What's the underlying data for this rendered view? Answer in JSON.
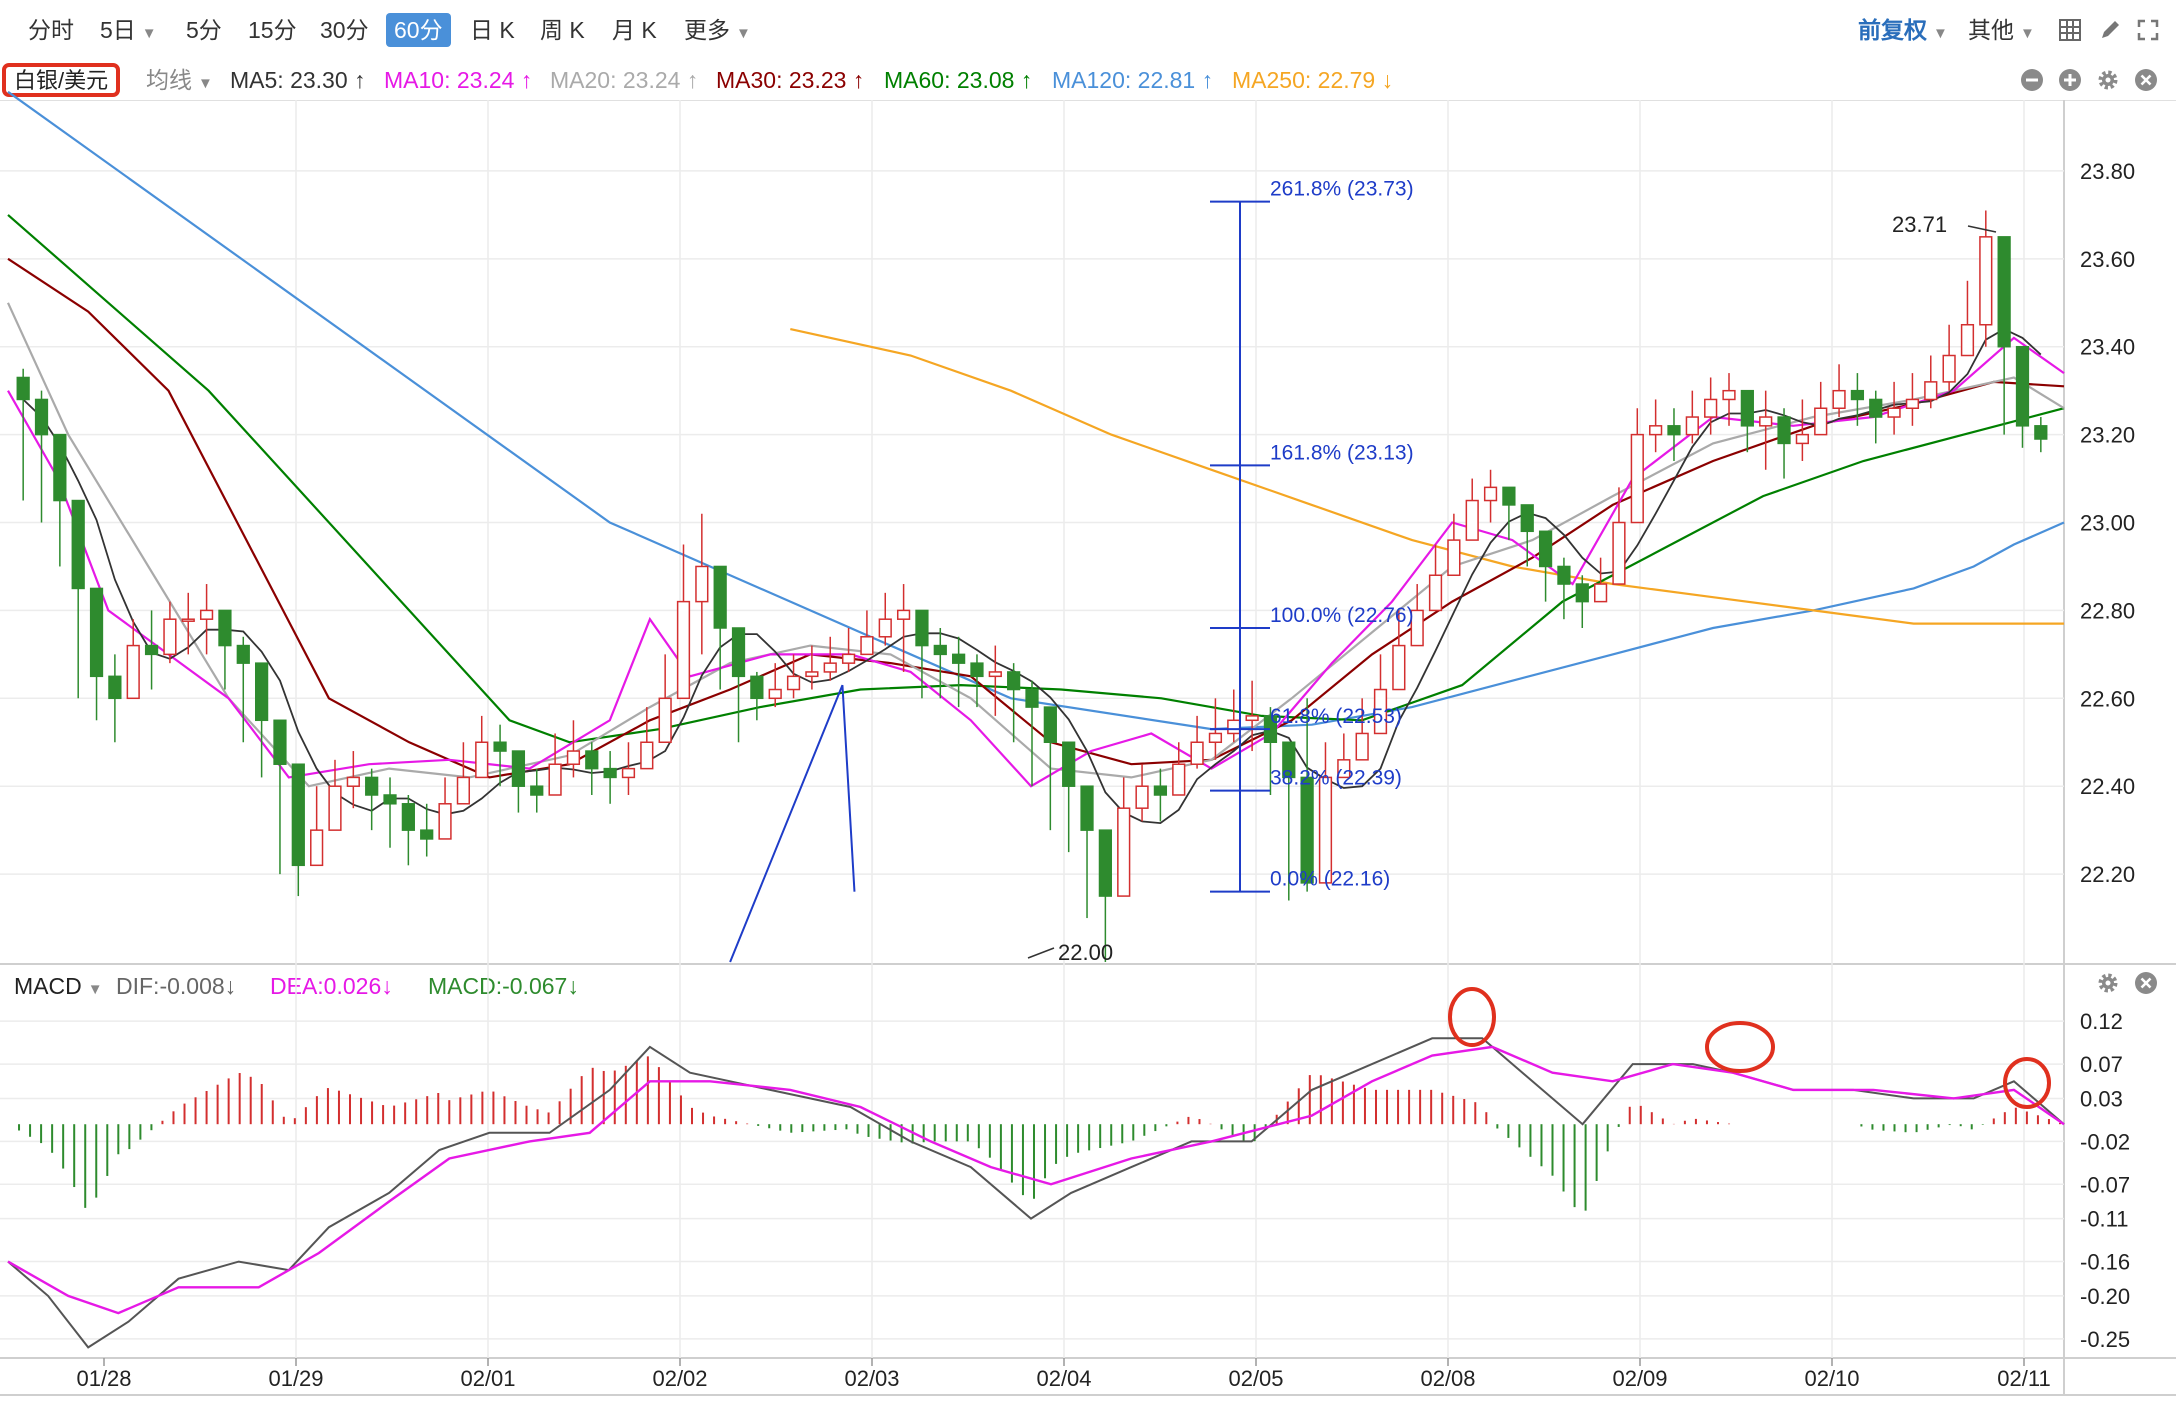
{
  "toolbar": {
    "periods": [
      "分时",
      "5日",
      "5分",
      "15分",
      "30分",
      "60分",
      "日 K",
      "周 K",
      "月 K",
      "更多"
    ],
    "active_period": "60分",
    "adjust_label": "前复权",
    "other_label": "其他"
  },
  "legend": {
    "symbol": "白银/美元",
    "avg_label": "均线",
    "ma": [
      {
        "text": "MA5: 23.30 ↑",
        "color": "#333333"
      },
      {
        "text": "MA10: 23.24 ↑",
        "color": "#e619e6"
      },
      {
        "text": "MA20: 23.24 ↑",
        "color": "#aaaaaa"
      },
      {
        "text": "MA30: 23.23 ↑",
        "color": "#8b0000"
      },
      {
        "text": "MA60: 23.08 ↑",
        "color": "#008000"
      },
      {
        "text": "MA120: 22.81 ↑",
        "color": "#4a90d9"
      },
      {
        "text": "MA250: 22.79 ↓",
        "color": "#f5a623"
      }
    ]
  },
  "macd_legend": {
    "title": "MACD",
    "dif": "DIF:-0.008↓",
    "dea": "DEA:0.026↓",
    "macd": "MACD:-0.067↓"
  },
  "colors": {
    "up": "#d32f2f",
    "down": "#2e8b2e",
    "ma5": "#333333",
    "ma10": "#e619e6",
    "ma20": "#aaaaaa",
    "ma30": "#8b0000",
    "ma60": "#008000",
    "ma120": "#4a90d9",
    "ma250": "#f5a623",
    "fib": "#1e3cc8",
    "highlight": "#e0301e"
  },
  "chart_data": {
    "type": "candlestick",
    "x_labels": [
      "01/28",
      "01/29",
      "02/01",
      "02/02",
      "02/03",
      "02/04",
      "02/05",
      "02/08",
      "02/09",
      "02/10",
      "02/11"
    ],
    "price_ticks": [
      "23.80",
      "23.60",
      "23.40",
      "23.20",
      "23.00",
      "22.80",
      "22.60",
      "22.40",
      "22.20"
    ],
    "price_range": [
      22.0,
      23.95
    ],
    "macd_ticks": [
      "0.12",
      "0.07",
      "0.03",
      "-0.02",
      "-0.07",
      "-0.11",
      "-0.16",
      "-0.20",
      "-0.25"
    ],
    "macd_range": [
      -0.27,
      0.14
    ],
    "high_annotation": "23.71",
    "low_annotation": "22.00",
    "fibonacci": [
      {
        "label": "261.8% (23.73)",
        "value": 23.73
      },
      {
        "label": "161.8% (23.13)",
        "value": 23.13
      },
      {
        "label": "100.0% (22.76)",
        "value": 22.76
      },
      {
        "label": "61.8% (22.53)",
        "value": 22.53
      },
      {
        "label": "38.2% (22.39)",
        "value": 22.39
      },
      {
        "label": "0.0% (22.16)",
        "value": 22.16
      }
    ],
    "closes": [
      23.28,
      23.2,
      23.05,
      22.85,
      22.65,
      22.6,
      22.72,
      22.7,
      22.78,
      22.78,
      22.8,
      22.72,
      22.68,
      22.55,
      22.45,
      22.22,
      22.3,
      22.4,
      22.42,
      22.38,
      22.36,
      22.3,
      22.28,
      22.36,
      22.42,
      22.5,
      22.48,
      22.4,
      22.38,
      22.45,
      22.48,
      22.44,
      22.42,
      22.44,
      22.5,
      22.6,
      22.82,
      22.9,
      22.76,
      22.65,
      22.6,
      22.62,
      22.65,
      22.66,
      22.68,
      22.7,
      22.74,
      22.78,
      22.8,
      22.72,
      22.7,
      22.68,
      22.65,
      22.66,
      22.62,
      22.58,
      22.5,
      22.4,
      22.3,
      22.15,
      22.35,
      22.4,
      22.38,
      22.45,
      22.5,
      22.52,
      22.55,
      22.56,
      22.5,
      22.42,
      22.18,
      22.42,
      22.46,
      22.52,
      22.62,
      22.72,
      22.8,
      22.88,
      22.96,
      23.05,
      23.08,
      23.04,
      22.98,
      22.9,
      22.86,
      22.82,
      22.86,
      23.0,
      23.2,
      23.22,
      23.2,
      23.24,
      23.28,
      23.3,
      23.22,
      23.24,
      23.18,
      23.2,
      23.26,
      23.3,
      23.28,
      23.24,
      23.26,
      23.28,
      23.32,
      23.38,
      23.45,
      23.65,
      23.4,
      23.22,
      23.19
    ],
    "highs": [
      23.35,
      23.3,
      23.15,
      22.95,
      22.75,
      22.7,
      22.78,
      22.8,
      22.82,
      22.84,
      22.86,
      22.8,
      22.74,
      22.62,
      22.52,
      22.3,
      22.4,
      22.46,
      22.48,
      22.44,
      22.42,
      22.38,
      22.36,
      22.42,
      22.5,
      22.56,
      22.54,
      22.46,
      22.44,
      22.52,
      22.55,
      22.5,
      22.48,
      22.5,
      22.58,
      22.7,
      22.95,
      23.02,
      22.86,
      22.72,
      22.66,
      22.68,
      22.7,
      22.72,
      22.74,
      22.76,
      22.8,
      22.84,
      22.86,
      22.8,
      22.76,
      22.74,
      22.7,
      22.72,
      22.68,
      22.64,
      22.58,
      22.48,
      22.38,
      22.26,
      22.42,
      22.45,
      22.44,
      22.5,
      22.56,
      22.6,
      22.62,
      22.64,
      22.58,
      22.5,
      22.6,
      22.5,
      22.52,
      22.6,
      22.7,
      22.8,
      22.86,
      22.95,
      23.02,
      23.1,
      23.12,
      23.08,
      23.04,
      22.96,
      22.92,
      22.88,
      22.92,
      23.08,
      23.26,
      23.28,
      23.26,
      23.3,
      23.33,
      23.34,
      23.28,
      23.3,
      23.26,
      23.28,
      23.32,
      23.36,
      23.34,
      23.3,
      23.32,
      23.34,
      23.38,
      23.45,
      23.55,
      23.71,
      23.5,
      23.3,
      23.24
    ],
    "lows": [
      23.05,
      23.0,
      22.9,
      22.6,
      22.55,
      22.5,
      22.6,
      22.62,
      22.68,
      22.7,
      22.7,
      22.62,
      22.5,
      22.42,
      22.2,
      22.15,
      22.22,
      22.32,
      22.35,
      22.3,
      22.26,
      22.22,
      22.24,
      22.3,
      22.36,
      22.44,
      22.4,
      22.34,
      22.34,
      22.4,
      22.42,
      22.38,
      22.36,
      22.38,
      22.44,
      22.55,
      22.74,
      22.7,
      22.62,
      22.5,
      22.55,
      22.58,
      22.6,
      22.62,
      22.64,
      22.66,
      22.7,
      22.72,
      22.66,
      22.6,
      22.6,
      22.58,
      22.58,
      22.56,
      22.5,
      22.4,
      22.3,
      22.25,
      22.1,
      22.0,
      22.24,
      22.32,
      22.32,
      22.4,
      22.44,
      22.46,
      22.5,
      22.48,
      22.38,
      22.14,
      22.16,
      22.38,
      22.42,
      22.48,
      22.56,
      22.66,
      22.74,
      22.8,
      22.9,
      22.98,
      23.0,
      22.96,
      22.9,
      22.82,
      22.78,
      22.76,
      22.82,
      22.96,
      23.14,
      23.16,
      23.14,
      23.18,
      23.2,
      23.22,
      23.16,
      23.12,
      23.1,
      23.14,
      23.2,
      23.24,
      23.22,
      23.18,
      23.2,
      23.22,
      23.26,
      23.3,
      23.38,
      23.4,
      23.2,
      23.17,
      23.16
    ],
    "ma": {
      "ma120": [
        [
          0,
          23.98
        ],
        [
          600,
          23.0
        ],
        [
          800,
          22.8
        ],
        [
          1000,
          22.6
        ],
        [
          1200,
          22.53
        ],
        [
          1300,
          22.54
        ],
        [
          1400,
          22.58
        ],
        [
          1500,
          22.64
        ],
        [
          1600,
          22.7
        ],
        [
          1700,
          22.76
        ],
        [
          1800,
          22.8
        ],
        [
          1900,
          22.85
        ],
        [
          1960,
          22.9
        ],
        [
          2000,
          22.95
        ],
        [
          2050,
          23.0
        ]
      ],
      "ma250": [
        [
          780,
          23.44
        ],
        [
          900,
          23.38
        ],
        [
          1000,
          23.3
        ],
        [
          1100,
          23.2
        ],
        [
          1200,
          23.12
        ],
        [
          1300,
          23.04
        ],
        [
          1400,
          22.96
        ],
        [
          1500,
          22.9
        ],
        [
          1600,
          22.86
        ],
        [
          1700,
          22.83
        ],
        [
          1800,
          22.8
        ],
        [
          1900,
          22.77
        ],
        [
          2050,
          22.77
        ]
      ],
      "ma60": [
        [
          0,
          23.7
        ],
        [
          100,
          23.5
        ],
        [
          200,
          23.3
        ],
        [
          300,
          23.05
        ],
        [
          400,
          22.8
        ],
        [
          500,
          22.55
        ],
        [
          560,
          22.5
        ],
        [
          650,
          22.53
        ],
        [
          750,
          22.58
        ],
        [
          850,
          22.62
        ],
        [
          950,
          22.63
        ],
        [
          1050,
          22.62
        ],
        [
          1150,
          22.6
        ],
        [
          1250,
          22.56
        ],
        [
          1350,
          22.55
        ],
        [
          1450,
          22.63
        ],
        [
          1550,
          22.82
        ],
        [
          1650,
          22.94
        ],
        [
          1750,
          23.06
        ],
        [
          1850,
          23.14
        ],
        [
          1950,
          23.2
        ],
        [
          2050,
          23.26
        ]
      ],
      "ma30": [
        [
          0,
          23.6
        ],
        [
          80,
          23.48
        ],
        [
          160,
          23.3
        ],
        [
          240,
          22.95
        ],
        [
          320,
          22.6
        ],
        [
          400,
          22.5
        ],
        [
          480,
          22.42
        ],
        [
          560,
          22.45
        ],
        [
          640,
          22.55
        ],
        [
          720,
          22.62
        ],
        [
          800,
          22.7
        ],
        [
          880,
          22.68
        ],
        [
          960,
          22.65
        ],
        [
          1040,
          22.5
        ],
        [
          1120,
          22.45
        ],
        [
          1200,
          22.46
        ],
        [
          1280,
          22.55
        ],
        [
          1360,
          22.7
        ],
        [
          1440,
          22.82
        ],
        [
          1520,
          22.92
        ],
        [
          1600,
          23.04
        ],
        [
          1700,
          23.14
        ],
        [
          1800,
          23.22
        ],
        [
          1900,
          23.27
        ],
        [
          1980,
          23.32
        ],
        [
          2050,
          23.31
        ]
      ],
      "ma20": [
        [
          0,
          23.5
        ],
        [
          60,
          23.2
        ],
        [
          140,
          22.9
        ],
        [
          220,
          22.6
        ],
        [
          300,
          22.4
        ],
        [
          380,
          22.44
        ],
        [
          460,
          22.42
        ],
        [
          560,
          22.47
        ],
        [
          640,
          22.58
        ],
        [
          720,
          22.68
        ],
        [
          800,
          22.72
        ],
        [
          880,
          22.7
        ],
        [
          960,
          22.6
        ],
        [
          1040,
          22.44
        ],
        [
          1120,
          22.42
        ],
        [
          1200,
          22.46
        ],
        [
          1280,
          22.6
        ],
        [
          1360,
          22.75
        ],
        [
          1440,
          22.9
        ],
        [
          1520,
          22.96
        ],
        [
          1600,
          23.06
        ],
        [
          1700,
          23.18
        ],
        [
          1800,
          23.24
        ],
        [
          1900,
          23.28
        ],
        [
          2000,
          23.33
        ],
        [
          2050,
          23.26
        ]
      ],
      "ma10": [
        [
          0,
          23.3
        ],
        [
          50,
          23.1
        ],
        [
          100,
          22.8
        ],
        [
          160,
          22.7
        ],
        [
          220,
          22.6
        ],
        [
          280,
          22.42
        ],
        [
          360,
          22.45
        ],
        [
          440,
          22.46
        ],
        [
          520,
          22.44
        ],
        [
          600,
          22.55
        ],
        [
          640,
          22.78
        ],
        [
          680,
          22.65
        ],
        [
          760,
          22.7
        ],
        [
          840,
          22.7
        ],
        [
          900,
          22.66
        ],
        [
          960,
          22.55
        ],
        [
          1020,
          22.4
        ],
        [
          1080,
          22.48
        ],
        [
          1140,
          22.52
        ],
        [
          1200,
          22.44
        ],
        [
          1260,
          22.52
        ],
        [
          1320,
          22.68
        ],
        [
          1380,
          22.82
        ],
        [
          1440,
          23.0
        ],
        [
          1500,
          22.96
        ],
        [
          1560,
          22.86
        ],
        [
          1620,
          23.1
        ],
        [
          1700,
          23.24
        ],
        [
          1780,
          23.22
        ],
        [
          1860,
          23.24
        ],
        [
          1940,
          23.3
        ],
        [
          2000,
          23.42
        ],
        [
          2050,
          23.34
        ]
      ]
    },
    "macd_dif": [
      [
        0,
        -0.16
      ],
      [
        40,
        -0.2
      ],
      [
        80,
        -0.26
      ],
      [
        120,
        -0.23
      ],
      [
        170,
        -0.18
      ],
      [
        230,
        -0.16
      ],
      [
        280,
        -0.17
      ],
      [
        320,
        -0.12
      ],
      [
        380,
        -0.08
      ],
      [
        430,
        -0.03
      ],
      [
        480,
        -0.01
      ],
      [
        540,
        -0.01
      ],
      [
        600,
        0.04
      ],
      [
        640,
        0.09
      ],
      [
        680,
        0.06
      ],
      [
        760,
        0.04
      ],
      [
        840,
        0.02
      ],
      [
        900,
        -0.02
      ],
      [
        960,
        -0.05
      ],
      [
        1020,
        -0.11
      ],
      [
        1060,
        -0.08
      ],
      [
        1120,
        -0.05
      ],
      [
        1180,
        -0.02
      ],
      [
        1240,
        -0.02
      ],
      [
        1300,
        0.04
      ],
      [
        1360,
        0.07
      ],
      [
        1420,
        0.1
      ],
      [
        1470,
        0.1
      ],
      [
        1520,
        0.05
      ],
      [
        1570,
        0.0
      ],
      [
        1620,
        0.07
      ],
      [
        1680,
        0.07
      ],
      [
        1720,
        0.06
      ],
      [
        1780,
        0.04
      ],
      [
        1840,
        0.04
      ],
      [
        1900,
        0.03
      ],
      [
        1960,
        0.03
      ],
      [
        2000,
        0.05
      ],
      [
        2050,
        0.0
      ]
    ],
    "macd_dea": [
      [
        0,
        -0.16
      ],
      [
        60,
        -0.2
      ],
      [
        110,
        -0.22
      ],
      [
        170,
        -0.19
      ],
      [
        250,
        -0.19
      ],
      [
        310,
        -0.15
      ],
      [
        380,
        -0.09
      ],
      [
        440,
        -0.04
      ],
      [
        520,
        -0.02
      ],
      [
        580,
        -0.01
      ],
      [
        640,
        0.05
      ],
      [
        700,
        0.05
      ],
      [
        780,
        0.04
      ],
      [
        850,
        0.02
      ],
      [
        920,
        -0.02
      ],
      [
        980,
        -0.05
      ],
      [
        1040,
        -0.07
      ],
      [
        1120,
        -0.04
      ],
      [
        1200,
        -0.02
      ],
      [
        1300,
        0.01
      ],
      [
        1360,
        0.05
      ],
      [
        1420,
        0.08
      ],
      [
        1480,
        0.09
      ],
      [
        1540,
        0.06
      ],
      [
        1600,
        0.05
      ],
      [
        1660,
        0.07
      ],
      [
        1720,
        0.06
      ],
      [
        1780,
        0.04
      ],
      [
        1860,
        0.04
      ],
      [
        1940,
        0.03
      ],
      [
        2000,
        0.04
      ],
      [
        2050,
        0.0
      ]
    ]
  }
}
